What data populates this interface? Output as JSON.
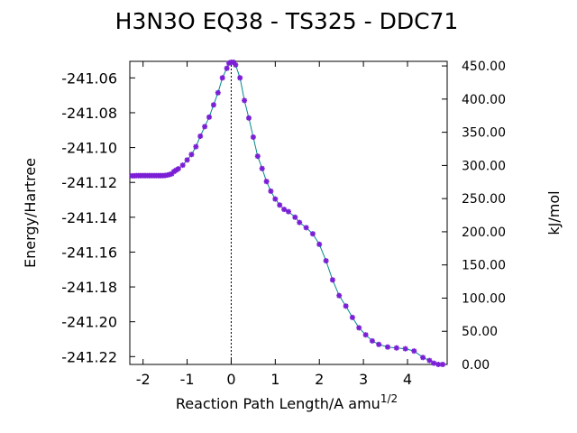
{
  "chart_data": {
    "type": "line",
    "title": "H3N3O   EQ38 - TS325 - DDC71",
    "xlabel": "Reaction Path Length/A amu",
    "xlabel_superscript": "1/2",
    "ylabel": "Energy/Hartree",
    "y2label": "kJ/mol",
    "xlim": [
      -2.3,
      4.9
    ],
    "ylim": [
      -241.2245,
      -241.0505
    ],
    "y2lim": [
      0.0,
      456.9
    ],
    "x_ticks": [
      -2,
      -1,
      0,
      1,
      2,
      3,
      4
    ],
    "x_tick_labels": [
      "-2",
      "-1",
      "0",
      "1",
      "2",
      "3",
      "4"
    ],
    "y_ticks": [
      -241.06,
      -241.08,
      -241.1,
      -241.12,
      -241.14,
      -241.16,
      -241.18,
      -241.2,
      -241.22
    ],
    "y_tick_labels": [
      "-241.06",
      "-241.08",
      "-241.10",
      "-241.12",
      "-241.14",
      "-241.16",
      "-241.18",
      "-241.20",
      "-241.22"
    ],
    "y2_ticks": [
      0,
      50,
      100,
      150,
      200,
      250,
      300,
      350,
      400,
      450
    ],
    "y2_tick_labels": [
      "0.00",
      "50.00",
      "100.00",
      "150.00",
      "200.00",
      "250.00",
      "300.00",
      "350.00",
      "400.00",
      "450.00"
    ],
    "ts_marker_x": 0.0,
    "grid": false,
    "colors": {
      "line": "#008b8b",
      "marker": "#7b1fd6",
      "ts_line": "#000000"
    },
    "series": [
      {
        "x": [
          -2.25,
          -2.2,
          -2.15,
          -2.1,
          -2.05,
          -2.0,
          -1.95,
          -1.9,
          -1.85,
          -1.8,
          -1.75,
          -1.7,
          -1.65,
          -1.6,
          -1.55,
          -1.5,
          -1.45,
          -1.4,
          -1.35,
          -1.3,
          -1.25,
          -1.2,
          -1.1,
          -1.0,
          -0.9,
          -0.8,
          -0.7,
          -0.6,
          -0.5,
          -0.4,
          -0.3,
          -0.2,
          -0.1,
          -0.05,
          0.0,
          0.05,
          0.1,
          0.2,
          0.3,
          0.4,
          0.5,
          0.6,
          0.7,
          0.8,
          0.9,
          1.0,
          1.1,
          1.2,
          1.3,
          1.45,
          1.55,
          1.7,
          1.85,
          2.0,
          2.15,
          2.3,
          2.45,
          2.6,
          2.75,
          2.9,
          3.05,
          3.2,
          3.35,
          3.55,
          3.75,
          3.95,
          4.15,
          4.35,
          4.5,
          4.6,
          4.7,
          4.8
        ],
        "y": [
          -241.1162,
          -241.1162,
          -241.1161,
          -241.1161,
          -241.1161,
          -241.1161,
          -241.1161,
          -241.1161,
          -241.1161,
          -241.1161,
          -241.1161,
          -241.1161,
          -241.1161,
          -241.1161,
          -241.1161,
          -241.116,
          -241.1158,
          -241.1155,
          -241.1151,
          -241.1138,
          -241.113,
          -241.1122,
          -241.1101,
          -241.1071,
          -241.104,
          -241.0995,
          -241.0935,
          -241.088,
          -241.0825,
          -241.0755,
          -241.0685,
          -241.06,
          -241.0545,
          -241.0515,
          -241.051,
          -241.051,
          -241.0525,
          -241.06,
          -241.073,
          -241.083,
          -241.094,
          -241.105,
          -241.112,
          -241.1195,
          -241.125,
          -241.1295,
          -241.133,
          -241.1355,
          -241.1368,
          -241.14,
          -241.143,
          -241.146,
          -241.1495,
          -241.1555,
          -241.165,
          -241.176,
          -241.185,
          -241.191,
          -241.1975,
          -241.2035,
          -241.2075,
          -241.211,
          -241.213,
          -241.2145,
          -241.215,
          -241.2155,
          -241.2168,
          -241.2205,
          -241.2222,
          -241.2238,
          -241.2245,
          -241.2245
        ]
      }
    ]
  }
}
